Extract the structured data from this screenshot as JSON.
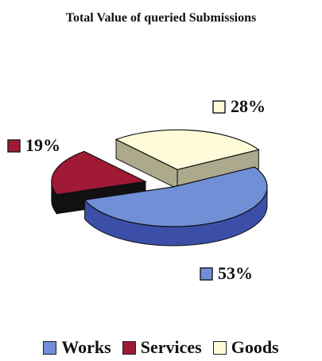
{
  "chart_data": {
    "type": "pie",
    "title": "Total Value of queried Submissions",
    "categories": [
      "Works",
      "Services",
      "Goods"
    ],
    "values": [
      53,
      19,
      28
    ],
    "labels": [
      "53%",
      "19%",
      "28%"
    ],
    "colors": [
      "#6f8fd6",
      "#a01a35",
      "#fffbd9"
    ],
    "side_colors": [
      "#3b4fa8",
      "#111111",
      "#ada98c"
    ],
    "legend_position": "bottom",
    "exploded": [
      "Services",
      "Goods"
    ],
    "style": "3d"
  }
}
